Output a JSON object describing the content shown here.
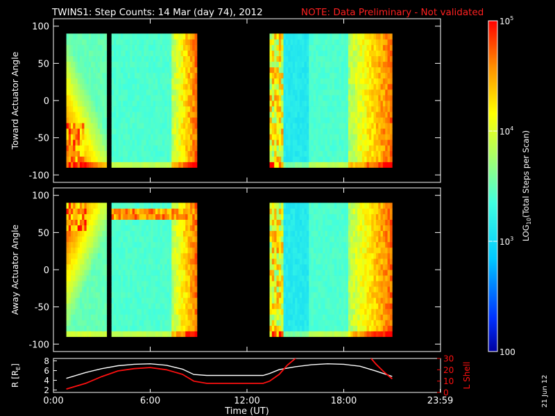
{
  "header": {
    "title": "TWINS1: Step Counts: 14 Mar (day  74), 2012",
    "note": "NOTE: Data Preliminary - Not validated",
    "note_color": "#ff2020"
  },
  "side_stamp": "21 Jun 12",
  "colors": {
    "background": "#000000",
    "axes": "#ffffff",
    "r_line": "#ffffff",
    "lshell_line": "#ff1010",
    "colorscale": [
      "#0000a0",
      "#0030ff",
      "#00c8ff",
      "#40ffe0",
      "#b0ff60",
      "#ffff00",
      "#ff9000",
      "#ff0000"
    ]
  },
  "chart_data": [
    {
      "type": "heatmap",
      "panel": "toward",
      "title": "",
      "xlabel": "",
      "ylabel": "Toward Actuator Angle",
      "xlim": [
        0,
        24
      ],
      "ylim": [
        -110,
        110
      ],
      "yticks": [
        100,
        50,
        0,
        -50,
        -100
      ],
      "x_range_hours": [
        0,
        24
      ],
      "data_blocks_hours": [
        [
          0.8,
          3.3
        ],
        [
          3.6,
          8.9
        ],
        [
          13.4,
          21.0
        ]
      ],
      "log10_counts_typical": 3.5,
      "note_levels": "high counts (red/orange) near block edges and at low angles early in day"
    },
    {
      "type": "heatmap",
      "panel": "away",
      "title": "",
      "xlabel": "",
      "ylabel": "Away Actuator Angle",
      "xlim": [
        0,
        24
      ],
      "ylim": [
        -110,
        110
      ],
      "yticks": [
        100,
        50,
        0,
        -50,
        -100
      ],
      "data_blocks_hours": [
        [
          0.8,
          3.3
        ],
        [
          3.6,
          8.9
        ],
        [
          13.4,
          21.0
        ]
      ],
      "log10_counts_typical": 3.5,
      "note_levels": "high counts (red/orange) at high angles early in day and near block edges"
    },
    {
      "type": "line",
      "panel": "orbit",
      "xlabel": "Time (UT)",
      "xticks": [
        "0:00",
        "6:00",
        "12:00",
        "18:00",
        "23:59"
      ],
      "xtick_hours": [
        0,
        6,
        12,
        18,
        23.98
      ],
      "ylabel": "R [R",
      "ylabel_sub": "E",
      "ylabel_close": "]",
      "ylim": [
        1.5,
        8.5
      ],
      "yticks": [
        "8",
        "6",
        "4",
        "2"
      ],
      "ytick_values": [
        8,
        6,
        4,
        2
      ],
      "y2label": "L Shell",
      "y2lim": [
        0,
        30
      ],
      "y2ticks": [
        "30",
        "20",
        "10",
        "0"
      ],
      "y2tick_values": [
        30,
        20,
        10,
        0
      ],
      "series": [
        {
          "name": "R",
          "axis": "left",
          "x": [
            0.8,
            2,
            3,
            4,
            5,
            6,
            7,
            8,
            8.7,
            9.5,
            11,
            12,
            13,
            13.4,
            14,
            15,
            16,
            17,
            18,
            19,
            20,
            21
          ],
          "y": [
            4.4,
            5.6,
            6.4,
            7.0,
            7.3,
            7.4,
            7.1,
            6.3,
            5.2,
            5.0,
            5.0,
            5.0,
            5.0,
            5.4,
            6.2,
            6.8,
            7.2,
            7.4,
            7.3,
            6.9,
            5.9,
            4.8
          ]
        },
        {
          "name": "L Shell",
          "axis": "right",
          "x": [
            0.8,
            2,
            3,
            4,
            5,
            6,
            7,
            8,
            8.7,
            9.5,
            11,
            12,
            13,
            13.4,
            14,
            14.5,
            15,
            15.2,
            null,
            19.5,
            19.7,
            20,
            20.5,
            21
          ],
          "y": [
            3,
            8,
            14,
            19,
            21,
            22,
            20,
            16,
            10,
            8,
            8,
            8,
            8,
            10,
            16,
            24,
            30,
            33,
            null,
            33,
            30,
            25,
            18,
            12
          ]
        }
      ]
    }
  ],
  "colorbar": {
    "label": "LOG",
    "label_sub": "10",
    "label_rest": "(Total Steps per Scan)",
    "ticks": [
      {
        "base": "10",
        "exp": "5",
        "value": 100000
      },
      {
        "base": "10",
        "exp": "4",
        "value": 10000
      },
      {
        "base": "10",
        "exp": "3",
        "value": 1000
      },
      {
        "base": "100",
        "exp": "",
        "value": 100
      }
    ]
  }
}
